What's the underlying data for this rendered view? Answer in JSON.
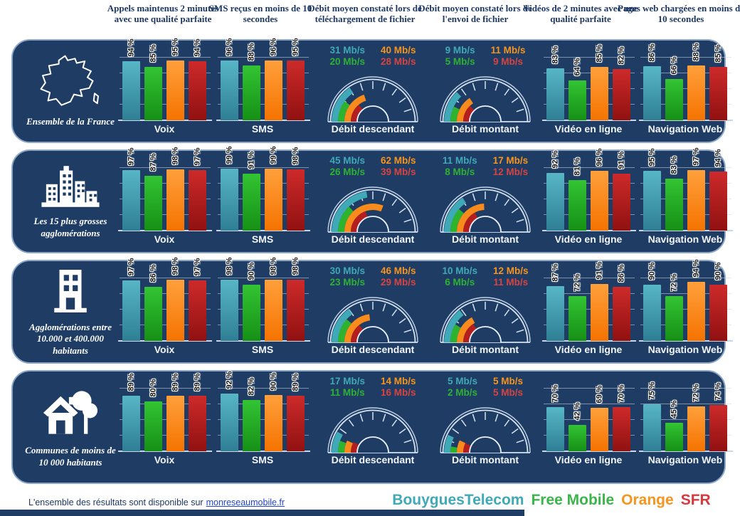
{
  "headers": [
    "Appels maintenus 2 minutes avec une qualité parfaite",
    "SMS reçus en moins de 10 secondes",
    "Débit moyen constaté lors de téléchargement de fichier",
    "Débit moyen constaté lors de l'envoi  de fichier",
    "Vidéos de 2 minutes avec une qualité parfaite",
    "Pages web chargées en moins de 10 secondes"
  ],
  "footer": {
    "text": "L'ensemble des résultats sont disponible sur",
    "link": "monreseaumobile.fr"
  },
  "legend": [
    {
      "label": "BouyguesTelecom",
      "color": "#3FA9B8"
    },
    {
      "label": "Free Mobile",
      "color": "#3BB54A"
    },
    {
      "label": "Orange",
      "color": "#F7941E"
    },
    {
      "label": "SFR",
      "color": "#D6393E"
    }
  ],
  "colors": {
    "panel_bg": "#1E3C64",
    "panel_border": "#8CA6C6",
    "header_text": "#1F3864",
    "bouygues": "#3FA9B8",
    "free": "#2DB32D",
    "orange": "#F98A1C",
    "sfr": "#B41E1E"
  },
  "chart_data": {
    "type": "table",
    "operators_order": [
      "Bouygues Telecom",
      "Free Mobile",
      "Orange",
      "SFR"
    ],
    "metric_titles": {
      "voix": "Voix",
      "sms": "SMS",
      "download": "Débit descendant",
      "upload": "Débit montant",
      "video": "Vidéo en ligne",
      "web": "Navigation Web"
    },
    "percent_unit": "%",
    "speed_unit": "Mb/s",
    "percent_axis": {
      "min": 0,
      "max": 100,
      "gridlines": [
        0,
        25,
        50,
        75,
        100
      ]
    },
    "gauge_scales": {
      "download_max_mbps": 100,
      "upload_max_mbps": 35
    },
    "rows": [
      {
        "label": "Ensemble de la France",
        "icon": "france-map-icon",
        "voix": [
          94,
          85,
          95,
          94
        ],
        "sms": [
          96,
          88,
          96,
          95
        ],
        "download_mbps": [
          31,
          20,
          40,
          28
        ],
        "upload_mbps": [
          9,
          5,
          11,
          9
        ],
        "video": [
          83,
          64,
          85,
          82
        ],
        "web": [
          86,
          66,
          88,
          85
        ]
      },
      {
        "label": "Les 15 plus grosses agglomérations",
        "icon": "city-icon",
        "voix": [
          97,
          87,
          98,
          97
        ],
        "sms": [
          99,
          91,
          99,
          98
        ],
        "download_mbps": [
          45,
          26,
          62,
          39
        ],
        "upload_mbps": [
          11,
          8,
          17,
          12
        ],
        "video": [
          92,
          81,
          96,
          91
        ],
        "web": [
          95,
          83,
          97,
          94
        ]
      },
      {
        "label": "Agglomérations entre 10.000 et 400.000 habitants",
        "icon": "building-icon",
        "voix": [
          97,
          86,
          98,
          97
        ],
        "sms": [
          98,
          90,
          98,
          98
        ],
        "download_mbps": [
          30,
          23,
          46,
          29
        ],
        "upload_mbps": [
          10,
          6,
          12,
          11
        ],
        "video": [
          87,
          72,
          91,
          86
        ],
        "web": [
          90,
          72,
          94,
          90
        ]
      },
      {
        "label": "Communes de moins de 10 000 habitants",
        "icon": "house-icon",
        "voix": [
          89,
          80,
          89,
          89
        ],
        "sms": [
          92,
          82,
          90,
          89
        ],
        "download_mbps": [
          17,
          11,
          14,
          16
        ],
        "upload_mbps": [
          5,
          2,
          5,
          5
        ],
        "video": [
          70,
          42,
          69,
          70
        ],
        "web": [
          75,
          45,
          72,
          74
        ]
      }
    ]
  }
}
